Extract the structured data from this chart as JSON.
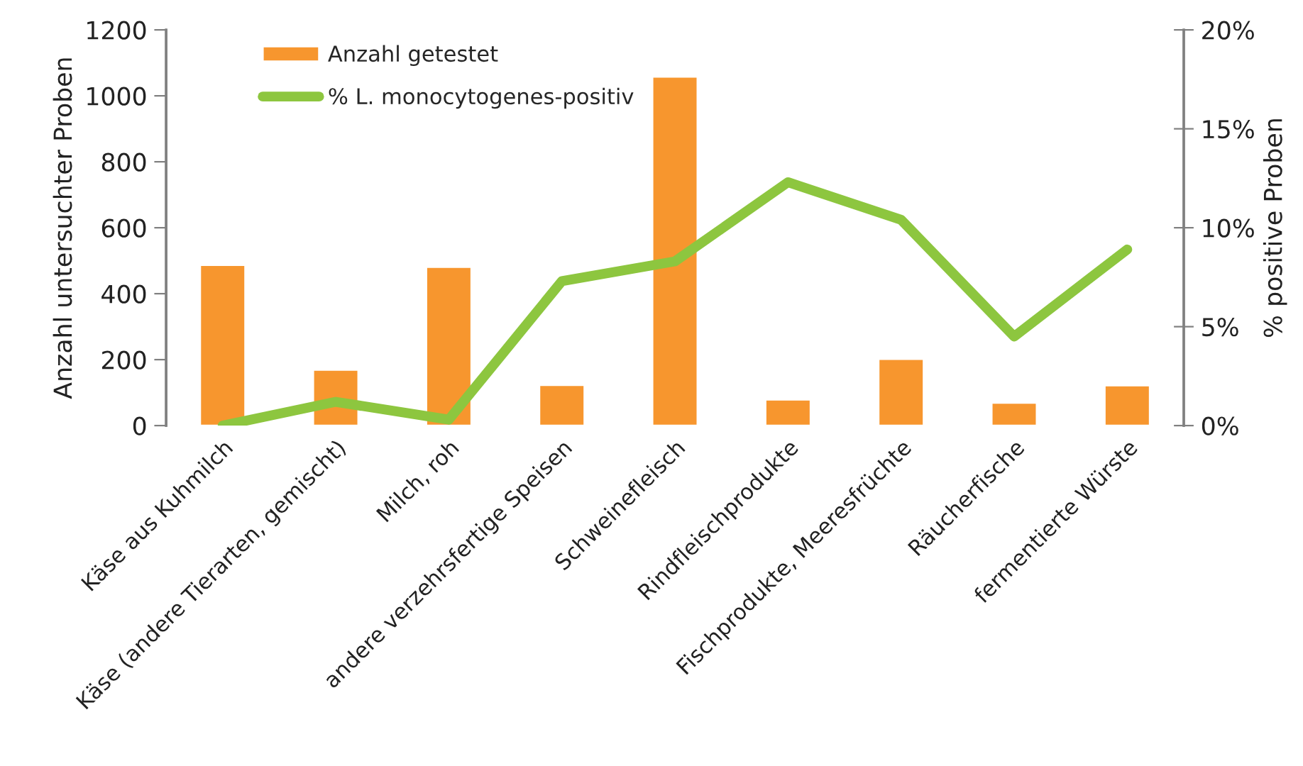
{
  "chart_data": {
    "type": "bar",
    "categories": [
      "Käse aus Kuhmilch",
      "Käse (andere Tierarten, gemischt)",
      "Milch, roh",
      "andere verzehrsfertige Speisen",
      "Schweinefleisch",
      "Rindfleischprodukte",
      "Fischprodukte, Meeresfrüchte",
      "Räucherfische",
      "fermentierte Würste"
    ],
    "series": [
      {
        "name": "Anzahl getestet",
        "color": "#f7962e",
        "values": [
          487,
          169,
          481,
          123,
          1058,
          79,
          202,
          69,
          122
        ]
      },
      {
        "name": "% L. monocytogenes-positiv",
        "type": "line",
        "axis": "y2",
        "color": "#8dc63f",
        "values": [
          0,
          1.2,
          0.3,
          7.3,
          8.3,
          12.3,
          10.4,
          4.5,
          8.9
        ]
      }
    ],
    "ylabel": "Anzahl untersuchter Proben",
    "y2label": "% positive Proben",
    "ylim": [
      0,
      1200
    ],
    "yticks": [
      0,
      200,
      400,
      600,
      800,
      1000,
      1200
    ],
    "y2lim": [
      0,
      20
    ],
    "y2ticks": [
      {
        "value": 0,
        "label": "0%"
      },
      {
        "value": 5,
        "label": "5%"
      },
      {
        "value": 10,
        "label": "10%"
      },
      {
        "value": 15,
        "label": "15%"
      },
      {
        "value": 20,
        "label": "20%"
      }
    ],
    "legend": "top left",
    "grid": false,
    "line_style": "solid",
    "marker": "none"
  }
}
